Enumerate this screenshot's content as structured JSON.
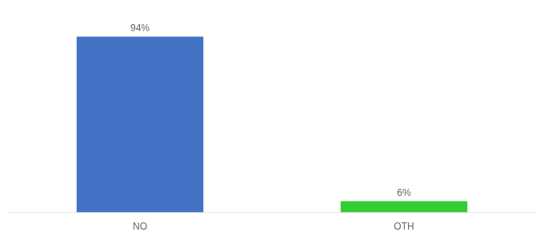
{
  "chart_data": {
    "type": "bar",
    "categories": [
      "NO",
      "OTH"
    ],
    "values": [
      94,
      6
    ],
    "value_labels": [
      "94%",
      "6%"
    ],
    "colors": [
      "#4472c4",
      "#33cc33"
    ],
    "ylim": [
      0,
      105
    ],
    "grid": false,
    "data_labels": true,
    "tick_labels": "x"
  }
}
